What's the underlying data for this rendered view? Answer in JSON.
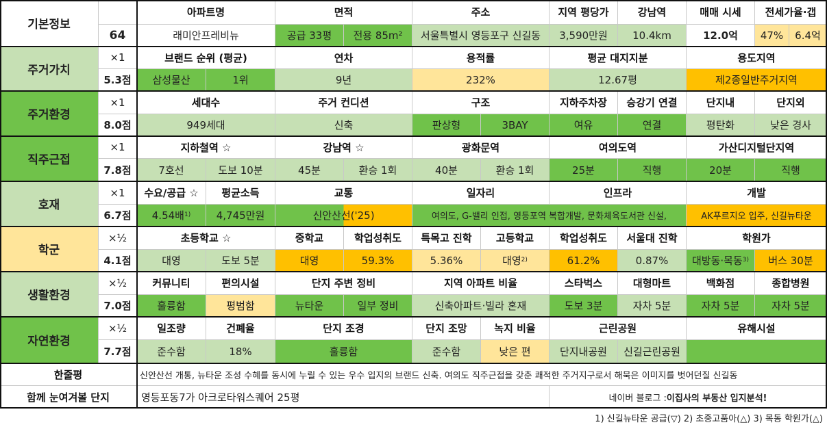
{
  "header": {
    "section": "기본정보",
    "score": "64",
    "labels": [
      "아파트명",
      "면적",
      "주소",
      "지역 평당가",
      "강남역",
      "매매 시세",
      "전세가율·갭"
    ],
    "apartment": "래미안프레비뉴",
    "area_supply": "공급 33평",
    "area_exclusive": "전용 85m²",
    "address": "서울특별시 영등포구 신길동",
    "price_per_pyeong": "3,590만원",
    "gangnam_distance": "10.4km",
    "sale_price": "12.0억",
    "jeonse_ratio": "47%",
    "gap": "6.4억"
  },
  "rows": {
    "living_value": {
      "name": "주거가치",
      "weight": "×1",
      "score": "5.3점",
      "labels": [
        "브랜드 순위 (평균)",
        "연차",
        "용적률",
        "평균 대지지분",
        "용도지역"
      ],
      "values": [
        "삼성물산",
        "1위",
        "9년",
        "232%",
        "12.67평",
        "제2종일반주거지역"
      ]
    },
    "living_env": {
      "name": "주거환경",
      "weight": "×1",
      "score": "8.0점",
      "labels": [
        "세대수",
        "주거 컨디션",
        "구조",
        "지하주차장",
        "승강기 연결",
        "단지내",
        "단지외"
      ],
      "values": [
        "949세대",
        "신축",
        "판상형",
        "3BAY",
        "여유",
        "연결",
        "평탄화",
        "낮은 경사"
      ]
    },
    "commute": {
      "name": "직주근접",
      "weight": "×1",
      "score": "7.8점",
      "labels": [
        "지하철역 ☆",
        "강남역 ☆",
        "광화문역",
        "여의도역",
        "가산디지털단지역"
      ],
      "values": [
        "7호선",
        "도보 10분",
        "45분",
        "환승 1회",
        "40분",
        "환승 1회",
        "25분",
        "직행",
        "20분",
        "직행"
      ]
    },
    "development": {
      "name": "호재",
      "weight": "×1",
      "score": "6.7점",
      "labels": [
        "수요/공급 ☆",
        "평균소득",
        "교통",
        "일자리",
        "인프라",
        "개발"
      ],
      "values": [
        "4.54배",
        "4,745만원",
        "신안산선('25)",
        "여의도, G-밸리 인접, 영등포역 복합개발, 문화체육도서관 신설,",
        "AK푸르지오 입주, 신길뉴타운"
      ],
      "sup1": "1)"
    },
    "school": {
      "name": "학군",
      "weight": "×½",
      "score": "4.1점",
      "labels": [
        "초등학교 ☆",
        "중학교",
        "학업성취도",
        "특목고 진학",
        "고등학교",
        "학업성취도",
        "서울대 진학",
        "학원가"
      ],
      "values": [
        "대영",
        "도보 5분",
        "대영",
        "59.3%",
        "5.36%",
        "대영",
        "61.2%",
        "0.87%",
        "대방동·목동",
        "버스 30분"
      ],
      "sup2": "2)",
      "sup3": "3)"
    },
    "life_env": {
      "name": "생활환경",
      "weight": "×½",
      "score": "7.0점",
      "labels": [
        "커뮤니티",
        "편의시설",
        "단지 주변 정비",
        "지역 아파트 비율",
        "스타벅스",
        "대형마트",
        "백화점",
        "종합병원"
      ],
      "values": [
        "훌륭함",
        "평범함",
        "뉴타운",
        "일부 정비",
        "신축아파트·빌라 혼재",
        "도보 3분",
        "자차 5분",
        "자차 5분",
        "자차 5분"
      ]
    },
    "nature_env": {
      "name": "자연환경",
      "weight": "×½",
      "score": "7.7점",
      "labels": [
        "일조량",
        "건폐율",
        "단지 조경",
        "단지 조망",
        "녹지 비율",
        "근린공원",
        "유해시설"
      ],
      "values": [
        "준수함",
        "18%",
        "훌륭함",
        "준수함",
        "낮은 편",
        "단지내공원",
        "신길근린공원",
        ""
      ]
    }
  },
  "summary": {
    "label": "한줄평",
    "text": "신안산선 개통, 뉴타운 조성 수혜를 동시에 누릴 수 있는 우수 입지의 브랜드 신축. 여의도 직주근접을 갖춘 쾌적한 주거지구로서 해묵은 이미지를 벗어던질 신길동"
  },
  "compare": {
    "label": "함께 눈여겨볼 단지",
    "text": "영등포동7가 아크로타워스퀘어 25평",
    "blog_prefix": "네이버 블로그 : ",
    "blog_name": "이집사의 부동산 입지분석!"
  },
  "footnote": "1) 신길뉴타운 공급(▽) 2) 초중고품아(△) 3) 목동 학원가(△)",
  "colors": {
    "light_green": "#c6e0b4",
    "dark_green": "#70c24a",
    "yellow": "#ffe59a",
    "orange": "#ffc000"
  }
}
